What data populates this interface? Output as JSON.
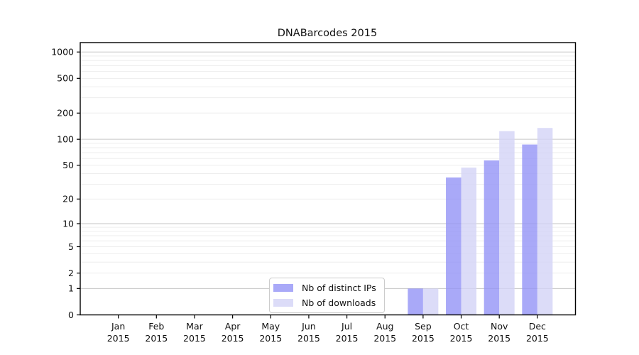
{
  "chart_data": {
    "type": "bar",
    "title": "DNABarcodes 2015",
    "x_ticks": [
      {
        "month": "Jan",
        "year": "2015"
      },
      {
        "month": "Feb",
        "year": "2015"
      },
      {
        "month": "Mar",
        "year": "2015"
      },
      {
        "month": "Apr",
        "year": "2015"
      },
      {
        "month": "May",
        "year": "2015"
      },
      {
        "month": "Jun",
        "year": "2015"
      },
      {
        "month": "Jul",
        "year": "2015"
      },
      {
        "month": "Aug",
        "year": "2015"
      },
      {
        "month": "Sep",
        "year": "2015"
      },
      {
        "month": "Oct",
        "year": "2015"
      },
      {
        "month": "Nov",
        "year": "2015"
      },
      {
        "month": "Dec",
        "year": "2015"
      }
    ],
    "y_ticks": [
      0,
      1,
      2,
      5,
      10,
      20,
      50,
      100,
      200,
      500,
      1000
    ],
    "y_scale": "log10(1+x)",
    "grid": "horizontal major + minor, on",
    "series": [
      {
        "name": "Nb of distinct IPs",
        "color": "#9494f6",
        "values": [
          0,
          0,
          0,
          0,
          0,
          0,
          0,
          0,
          1,
          36,
          57,
          87
        ]
      },
      {
        "name": "Nb of downloads",
        "color": "#d3d3f6",
        "values": [
          0,
          0,
          0,
          0,
          0,
          0,
          0,
          0,
          1,
          47,
          124,
          135
        ]
      }
    ],
    "bar_alpha": 0.8,
    "legend": {
      "position": "inside-bottom-center",
      "entries": [
        "Nb of distinct IPs",
        "Nb of downloads"
      ]
    },
    "colors": {
      "grid_major": "#c6c6c6",
      "grid_minor": "#ededed",
      "axis": "#000000",
      "text": "#111111",
      "legend_border": "#cccccc",
      "background": "#ffffff"
    }
  }
}
